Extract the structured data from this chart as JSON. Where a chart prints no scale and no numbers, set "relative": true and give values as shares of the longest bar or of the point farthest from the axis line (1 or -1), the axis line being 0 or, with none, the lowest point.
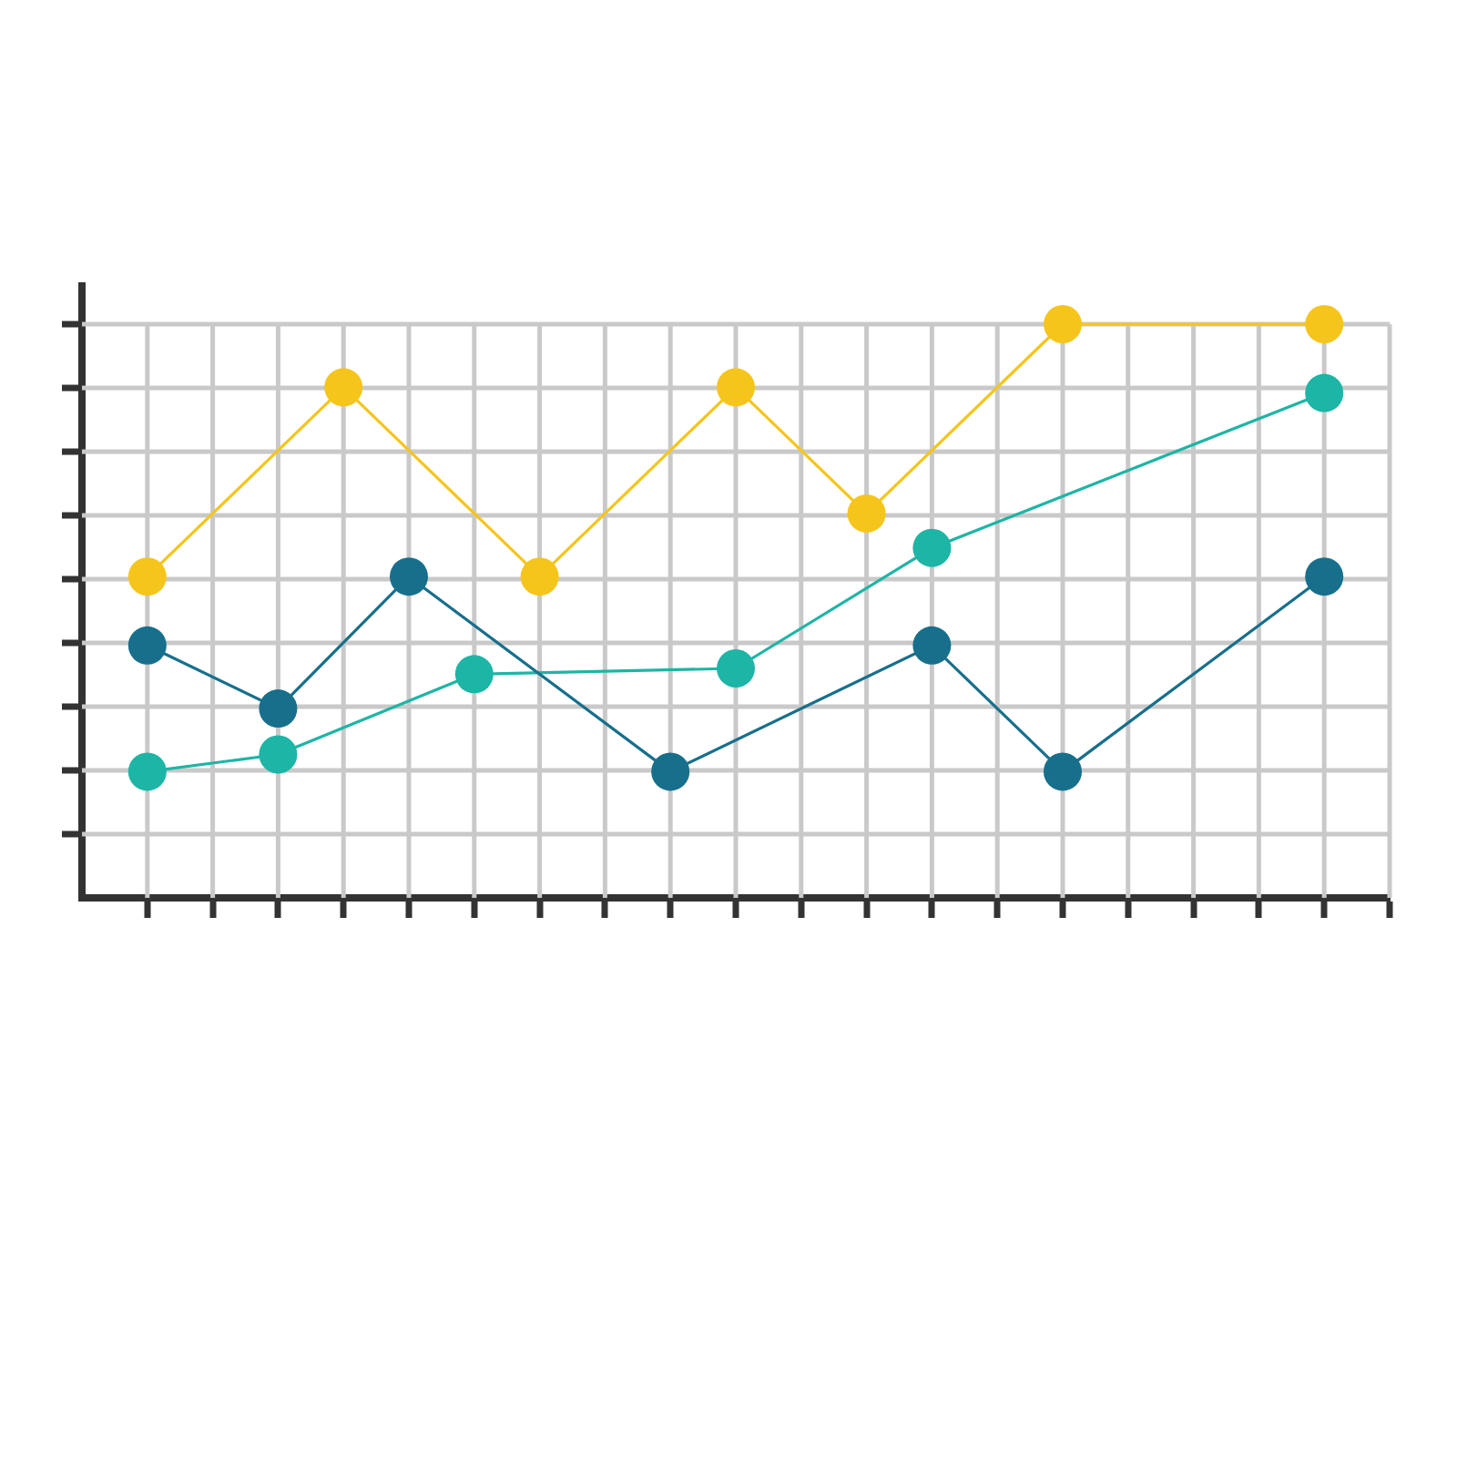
{
  "chart_data": {
    "type": "line",
    "relative": true,
    "grid": true,
    "legend": false,
    "marker": "circle",
    "categories": [
      null,
      null,
      null,
      null,
      null,
      null,
      null,
      null,
      null,
      null,
      null,
      null,
      null,
      null,
      null,
      null,
      null,
      null,
      null,
      null
    ],
    "series": [
      {
        "color": "#f5c51c",
        "values": [
          0.56,
          null,
          null,
          0.89,
          null,
          null,
          0.56,
          null,
          null,
          0.89,
          null,
          0.67,
          null,
          null,
          1,
          null,
          null,
          null,
          1,
          null
        ]
      },
      {
        "color": "#176f8c",
        "values": [
          0.44,
          null,
          0.33,
          null,
          0.56,
          null,
          null,
          null,
          0.22,
          null,
          null,
          null,
          0.44,
          null,
          0.22,
          null,
          null,
          null,
          0.56,
          null
        ]
      },
      {
        "color": "#1db5a5",
        "values": [
          0.22,
          null,
          0.25,
          null,
          null,
          0.39,
          null,
          null,
          null,
          0.4,
          null,
          null,
          0.61,
          null,
          null,
          null,
          null,
          null,
          0.88,
          null
        ]
      }
    ]
  }
}
